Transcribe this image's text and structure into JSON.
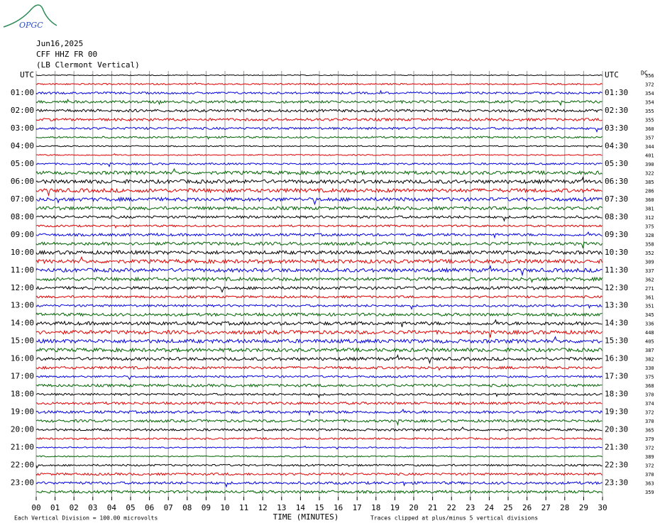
{
  "logo": "OPGC",
  "header": {
    "date": "Jun16,2025",
    "station": "CFF HHZ FR 00",
    "location": "(LB Clermont Vertical)"
  },
  "chart_data": {
    "type": "helicorder",
    "left_labels": [
      "UTC",
      "01:00",
      "02:00",
      "03:00",
      "04:00",
      "05:00",
      "06:00",
      "07:00",
      "08:00",
      "09:00",
      "10:00",
      "11:00",
      "12:00",
      "13:00",
      "14:00",
      "15:00",
      "16:00",
      "17:00",
      "18:00",
      "19:00",
      "20:00",
      "21:00",
      "22:00",
      "23:00"
    ],
    "right_labels": [
      "UTC",
      "01:30",
      "02:30",
      "03:30",
      "04:30",
      "05:30",
      "06:30",
      "07:30",
      "08:30",
      "09:30",
      "10:30",
      "11:30",
      "12:30",
      "13:30",
      "14:30",
      "15:30",
      "16:30",
      "17:30",
      "18:30",
      "19:30",
      "20:30",
      "21:30",
      "22:30",
      "23:30"
    ],
    "dc_label": "DC",
    "dc_values": [
      356,
      372,
      354,
      354,
      355,
      355,
      360,
      357,
      344,
      401,
      390,
      322,
      385,
      286,
      360,
      381,
      312,
      375,
      328,
      358,
      352,
      309,
      337,
      362,
      271,
      361,
      351,
      345,
      336,
      448,
      405,
      387,
      382,
      330,
      375,
      368,
      370,
      374,
      372,
      370,
      365,
      379,
      372,
      389,
      372,
      370,
      363,
      359
    ],
    "trace_colors": [
      "#000000",
      "#e00000",
      "#0000e0",
      "#006400"
    ],
    "xlim": [
      0,
      30
    ],
    "xticks": [
      {
        "value": 0,
        "label": "00"
      },
      {
        "value": 1,
        "label": "01"
      },
      {
        "value": 2,
        "label": "02"
      },
      {
        "value": 3,
        "label": "03"
      },
      {
        "value": 4,
        "label": "04"
      },
      {
        "value": 5,
        "label": "05"
      },
      {
        "value": 6,
        "label": "06"
      },
      {
        "value": 7,
        "label": "07"
      },
      {
        "value": 8,
        "label": "08"
      },
      {
        "value": 9,
        "label": "09"
      },
      10,
      11,
      12,
      13,
      14,
      15,
      16,
      17,
      18,
      19,
      20,
      21,
      22,
      23,
      24,
      25,
      26,
      27,
      28,
      29,
      30
    ],
    "xlabel": "TIME (MINUTES)",
    "scale_note": "Each Vertical Division =  100.00 microvolts",
    "clip_note": "Traces clipped at plus/minus 5 vertical divisions"
  }
}
